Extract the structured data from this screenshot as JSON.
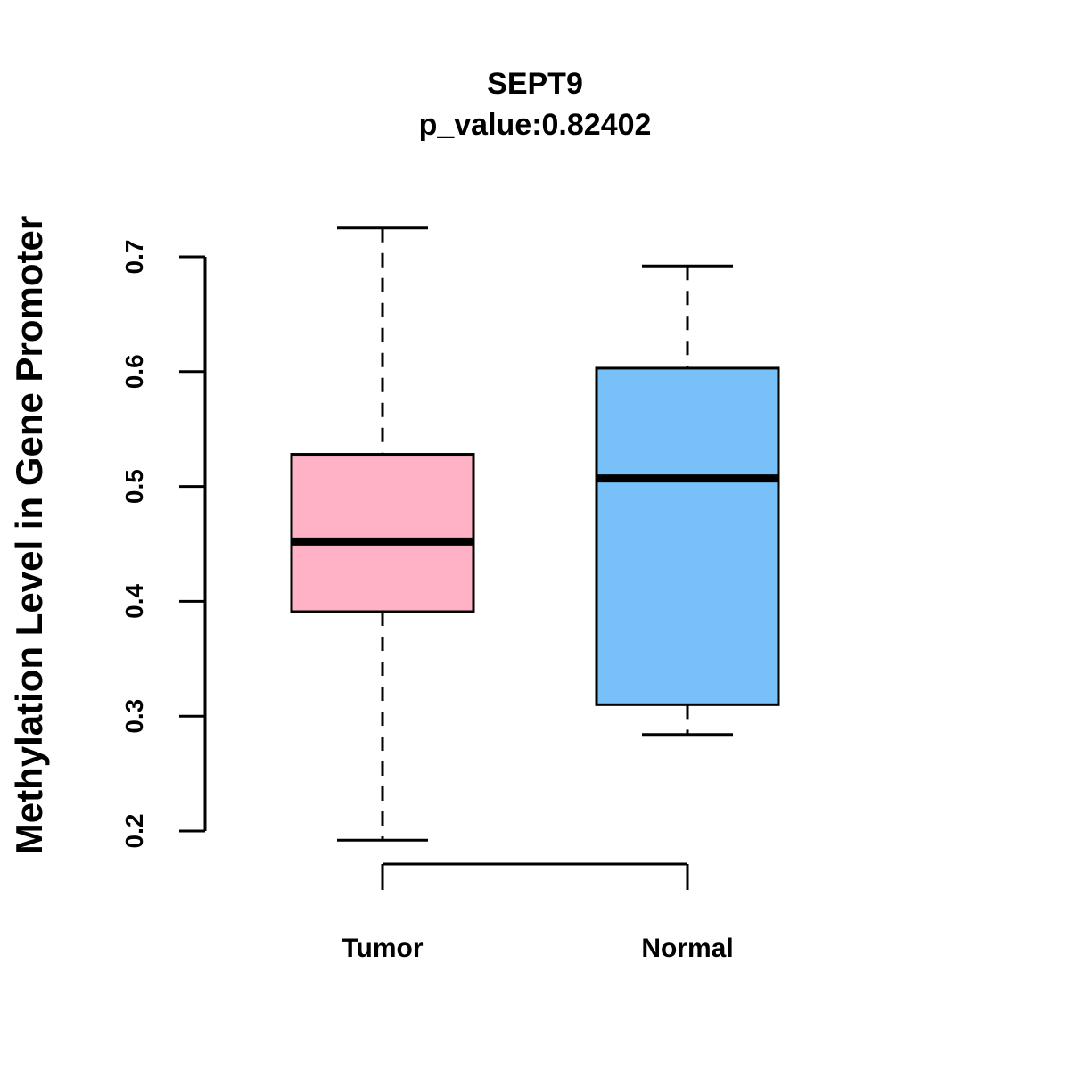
{
  "chart_data": {
    "type": "boxplot",
    "title": "SEPT9",
    "subtitle": "p_value:0.82402",
    "xlabel": "",
    "ylabel": "Methylation Level in Gene Promoter",
    "ylim": [
      0.2,
      0.7
    ],
    "yticks": [
      "0.2",
      "0.3",
      "0.4",
      "0.5",
      "0.6",
      "0.7"
    ],
    "categories": [
      "Tumor",
      "Normal"
    ],
    "boxes": [
      {
        "name": "Tumor",
        "min": 0.192,
        "q1": 0.391,
        "median": 0.452,
        "q3": 0.528,
        "max": 0.725,
        "color": "#FFB1C5"
      },
      {
        "name": "Normal",
        "min": 0.284,
        "q1": 0.31,
        "median": 0.507,
        "q3": 0.603,
        "max": 0.692,
        "color": "#77C1F8"
      }
    ]
  }
}
